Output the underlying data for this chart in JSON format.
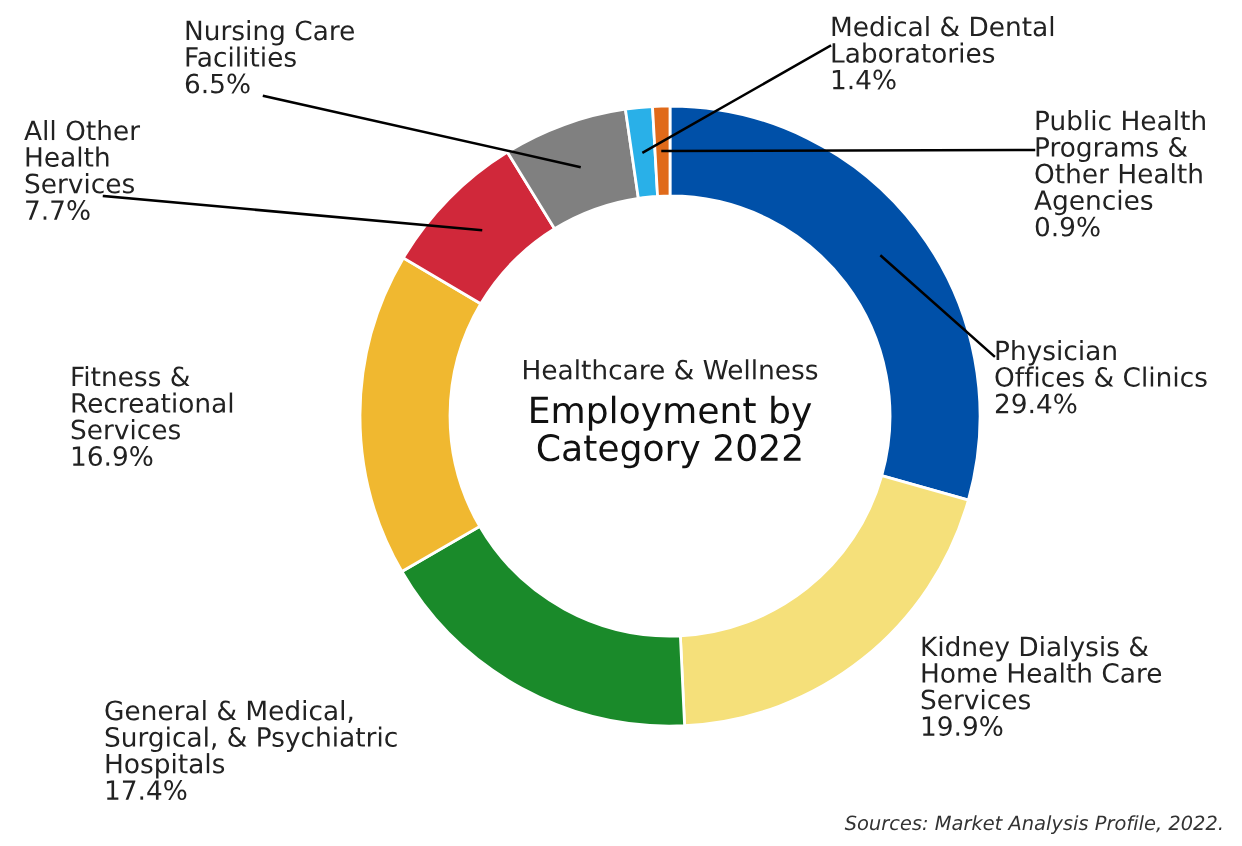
{
  "chart_data": {
    "type": "donut",
    "subtitle": "Healthcare & Wellness",
    "title": "Employment by\nCategory 2022",
    "categories": [
      "Physician\nOffices & Clinics",
      "Kidney Dialysis &\nHome Health Care\nServices",
      "General & Medical,\nSurgical, & Psychiatric\nHospitals",
      "Fitness &\nRecreational\nServices",
      "All Other\nHealth\nServices",
      "Nursing Care\nFacilities",
      "Medical & Dental\nLaboratories",
      "Public Health\nPrograms &\nOther Health\nAgencies"
    ],
    "values": [
      29.4,
      19.9,
      17.4,
      16.9,
      7.7,
      6.5,
      1.4,
      0.9
    ],
    "value_labels": [
      "29.4%",
      "19.9%",
      "17.4%",
      "16.9%",
      "7.7%",
      "6.5%",
      "1.4%",
      "0.9%"
    ],
    "colors": [
      "#0050a8",
      "#f5e07a",
      "#1a8a2a",
      "#f0b830",
      "#d0283a",
      "#808080",
      "#29b0e8",
      "#e06a1a"
    ],
    "annotations": [
      "Sources: Market Analysis Profile, 2022."
    ]
  }
}
